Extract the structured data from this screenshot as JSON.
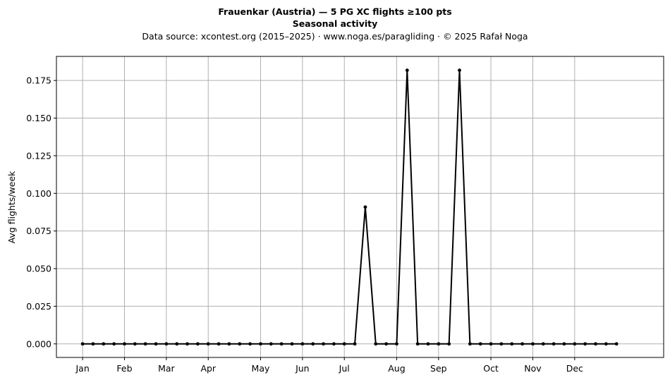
{
  "chart_data": {
    "type": "line",
    "title": "Frauenkar (Austria)  —  5 PG XC flights ≥100 pts",
    "subtitle": "Seasonal activity",
    "source_note": "Data source: xcontest.org (2015–2025)  ·  www.noga.es/paragliding  ·  © 2025 Rafał Noga",
    "ylabel": "Avg flights/week",
    "xlabel": "",
    "xlim": [
      -2.5,
      55.5
    ],
    "ylim": [
      -0.009,
      0.191
    ],
    "x_ticks": [
      {
        "label": "Jan",
        "x": 0
      },
      {
        "label": "Feb",
        "x": 4
      },
      {
        "label": "Mar",
        "x": 8
      },
      {
        "label": "Apr",
        "x": 12
      },
      {
        "label": "May",
        "x": 17
      },
      {
        "label": "Jun",
        "x": 21
      },
      {
        "label": "Jul",
        "x": 25
      },
      {
        "label": "Aug",
        "x": 30
      },
      {
        "label": "Sep",
        "x": 34
      },
      {
        "label": "Oct",
        "x": 39
      },
      {
        "label": "Nov",
        "x": 43
      },
      {
        "label": "Dec",
        "x": 47
      }
    ],
    "y_ticks": [
      "0.000",
      "0.025",
      "0.050",
      "0.075",
      "0.100",
      "0.125",
      "0.150",
      "0.175"
    ],
    "grid": true,
    "line_color": "#000000",
    "grid_color": "#b0b0b0",
    "series": [
      {
        "x": [
          0,
          1,
          2,
          3,
          4,
          5,
          6,
          7,
          8,
          9,
          10,
          11,
          12,
          13,
          14,
          15,
          16,
          17,
          18,
          19,
          20,
          21,
          22,
          23,
          24,
          25,
          26,
          27,
          28,
          29,
          30,
          31,
          32,
          33,
          34,
          35,
          36,
          37,
          38,
          39,
          40,
          41,
          42,
          43,
          44,
          45,
          46,
          47,
          48,
          49,
          50,
          51
        ],
        "values": [
          0,
          0,
          0,
          0,
          0,
          0,
          0,
          0,
          0,
          0,
          0,
          0,
          0,
          0,
          0,
          0,
          0,
          0,
          0,
          0,
          0,
          0,
          0,
          0,
          0,
          0,
          0,
          0.0909,
          0,
          0,
          0,
          0.1818,
          0,
          0,
          0,
          0,
          0.1818,
          0,
          0,
          0,
          0,
          0,
          0,
          0,
          0,
          0,
          0,
          0,
          0,
          0,
          0,
          0
        ]
      }
    ]
  }
}
